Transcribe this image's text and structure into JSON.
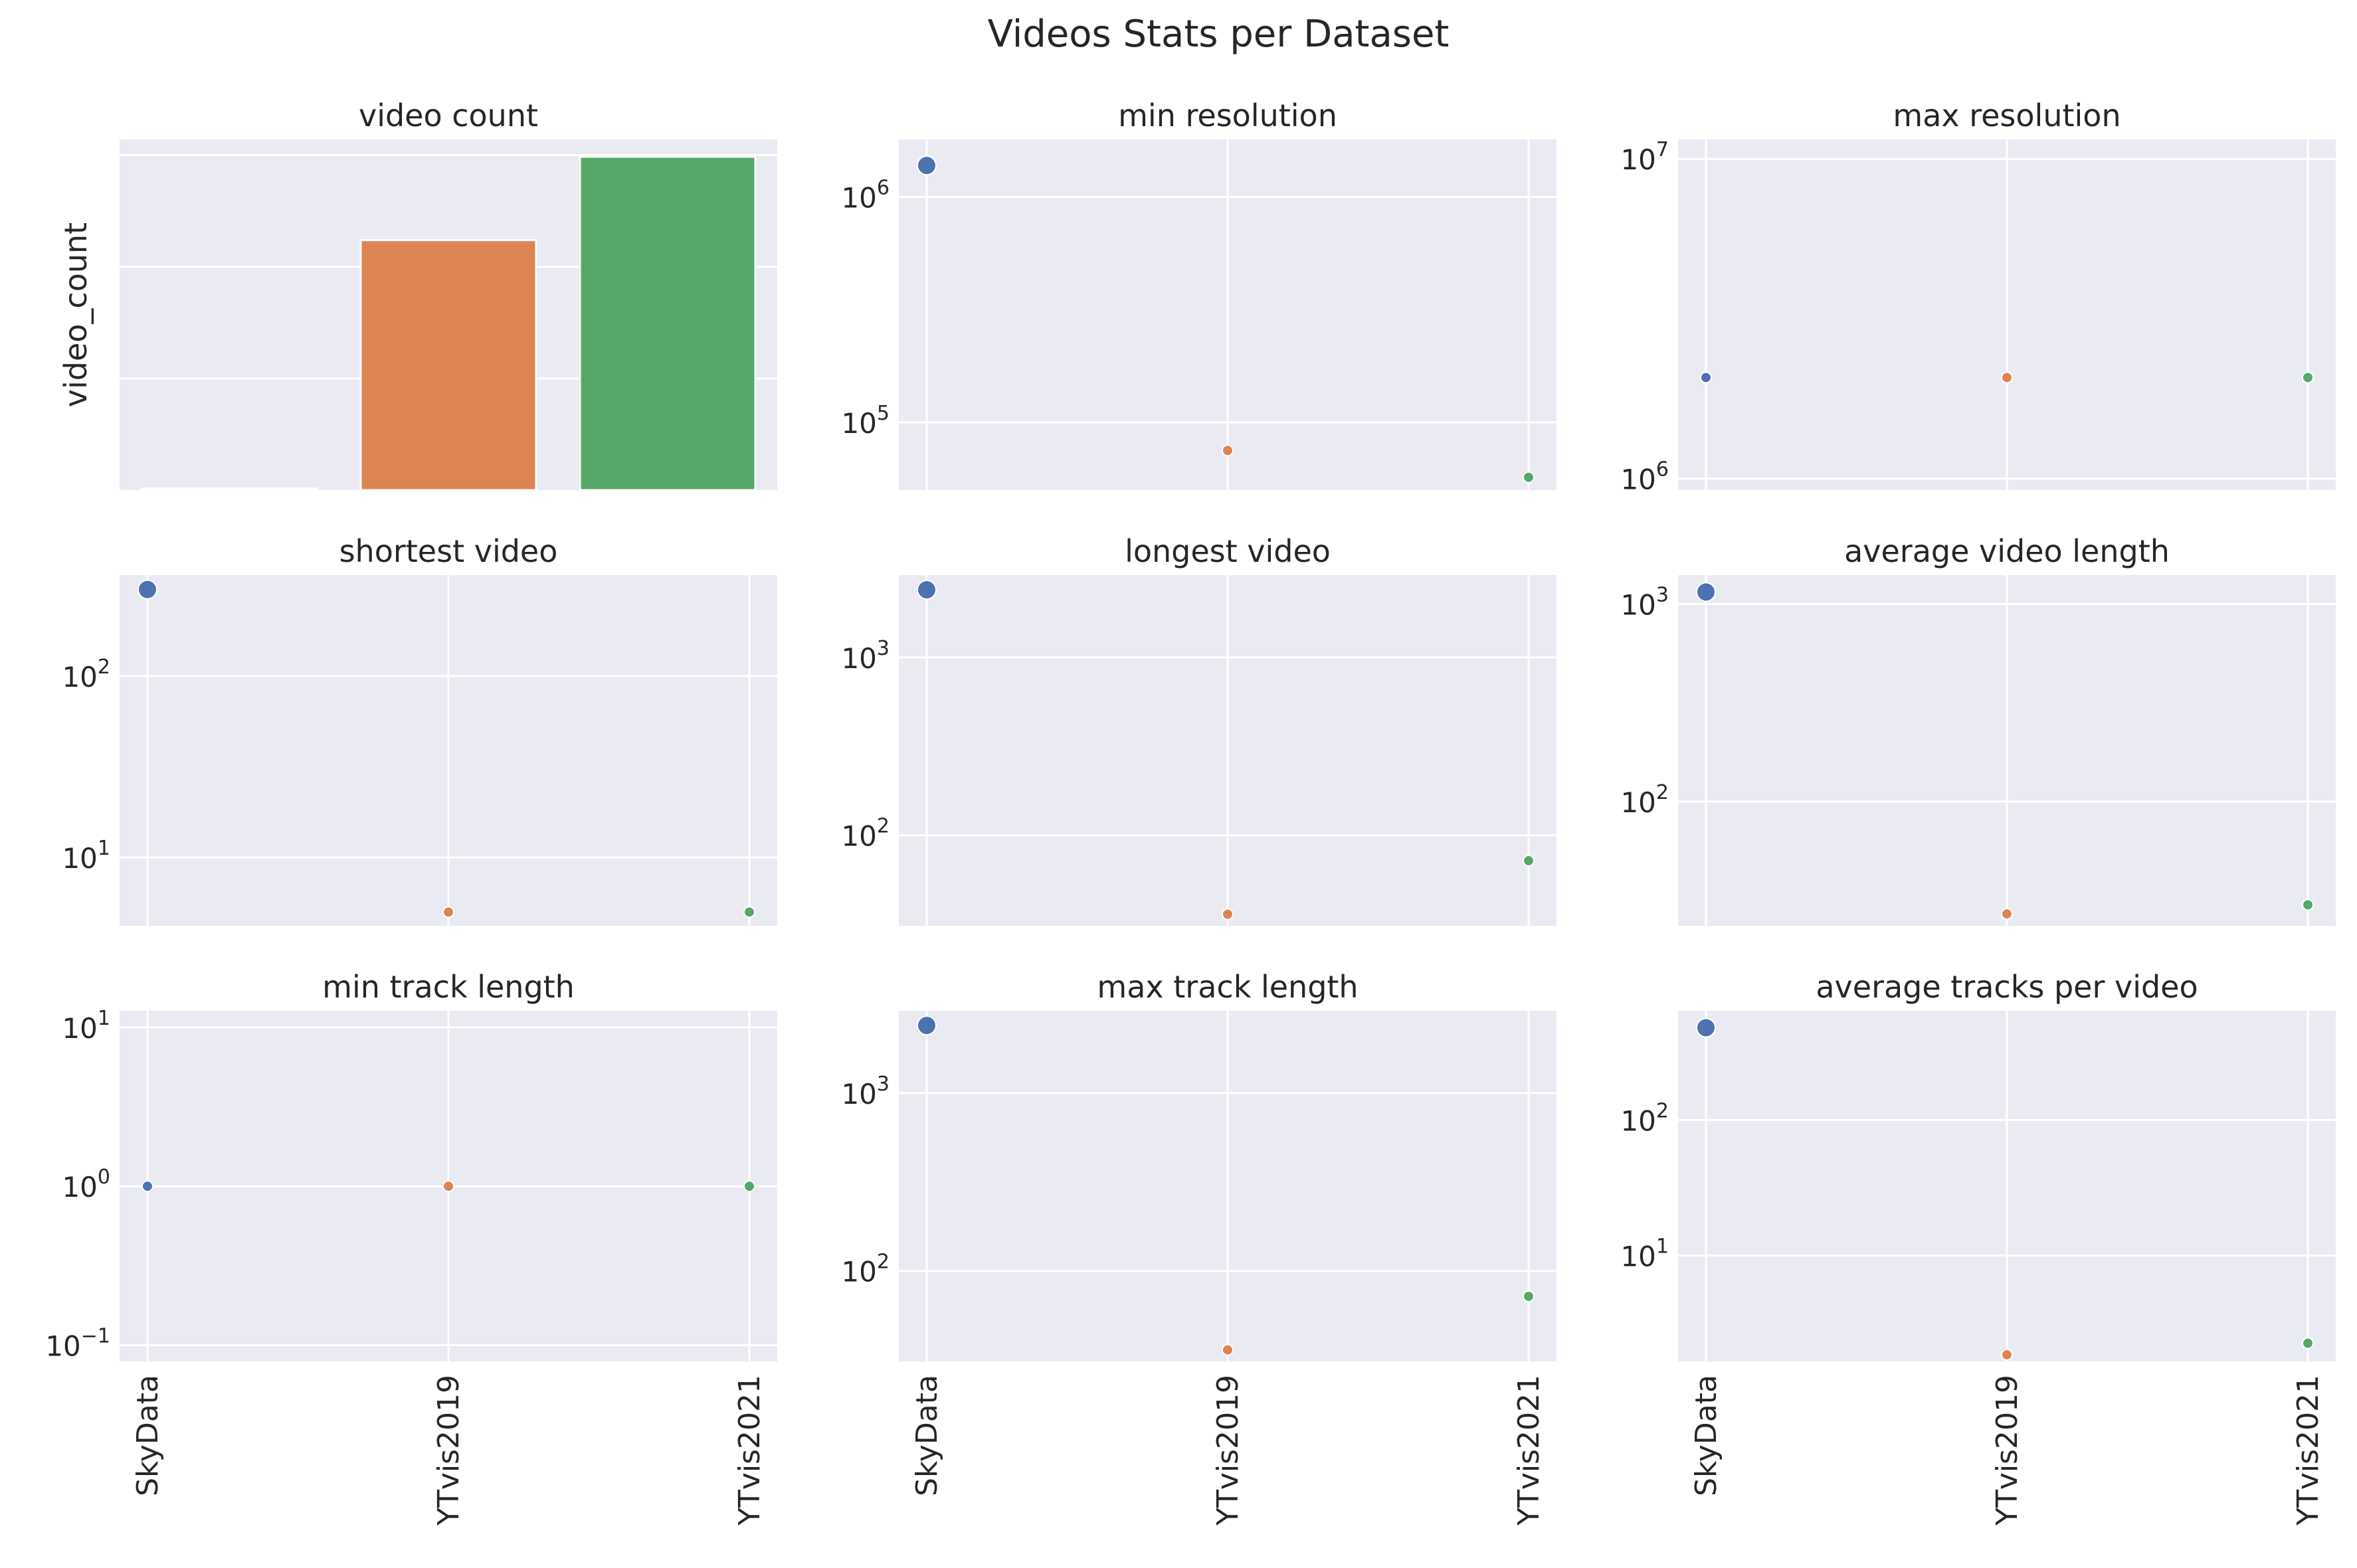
{
  "page": {
    "title": "Videos Stats per Dataset"
  },
  "palette": {
    "SkyData": "#4c72b0",
    "YTvis2019": "#dd8452",
    "YTvis2021": "#55a868",
    "panel_bg": "#eaeaf2",
    "grid": "#ffffff"
  },
  "chart_data": [
    {
      "type": "bar",
      "title": "video count",
      "ylabel": "video_count",
      "xlabel": "",
      "categories": [
        "SkyData",
        "YTvis2019",
        "YTvis2021"
      ],
      "values": [
        15,
        2238,
        2985
      ],
      "ylim": [
        0,
        3140
      ],
      "yscale": "linear",
      "y_tick_values": [
        1000,
        2000,
        3000
      ],
      "show_y_tick_labels": false,
      "x_tick_labels": [
        "SkyData",
        "YTvis2019",
        "YTvis2021"
      ],
      "show_x_tick_labels": false,
      "grid": true
    },
    {
      "type": "scatter",
      "title": "min resolution",
      "categories": [
        "SkyData",
        "YTvis2019",
        "YTvis2021"
      ],
      "values": [
        1380000,
        75000,
        57000
      ],
      "ylim": [
        50000,
        1800000
      ],
      "yscale": "log",
      "y_ticks": [
        {
          "value": 100000,
          "base": "10",
          "exp": "5"
        },
        {
          "value": 1000000,
          "base": "10",
          "exp": "6"
        }
      ],
      "marker_sizes": [
        "large",
        "small",
        "small"
      ],
      "show_x_tick_labels": false,
      "grid": true
    },
    {
      "type": "scatter",
      "title": "max resolution",
      "categories": [
        "SkyData",
        "YTvis2019",
        "YTvis2021"
      ],
      "values": [
        2070000,
        2070000,
        2070000
      ],
      "ylim": [
        920000,
        11500000
      ],
      "yscale": "log",
      "y_ticks": [
        {
          "value": 1000000,
          "base": "10",
          "exp": "6"
        },
        {
          "value": 10000000,
          "base": "10",
          "exp": "7"
        }
      ],
      "marker_sizes": [
        "small",
        "small",
        "small"
      ],
      "show_x_tick_labels": false,
      "grid": true
    },
    {
      "type": "scatter",
      "title": "shortest video",
      "categories": [
        "SkyData",
        "YTvis2019",
        "YTvis2021"
      ],
      "values": [
        300,
        5,
        5
      ],
      "ylim": [
        4.2,
        360
      ],
      "yscale": "log",
      "y_ticks": [
        {
          "value": 10,
          "base": "10",
          "exp": "1"
        },
        {
          "value": 100,
          "base": "10",
          "exp": "2"
        }
      ],
      "marker_sizes": [
        "large",
        "small",
        "small"
      ],
      "show_x_tick_labels": false,
      "grid": true
    },
    {
      "type": "scatter",
      "title": "longest video",
      "categories": [
        "SkyData",
        "YTvis2019",
        "YTvis2021"
      ],
      "values": [
        2400,
        36,
        72
      ],
      "ylim": [
        31,
        2900
      ],
      "yscale": "log",
      "y_ticks": [
        {
          "value": 100,
          "base": "10",
          "exp": "2"
        },
        {
          "value": 1000,
          "base": "10",
          "exp": "3"
        }
      ],
      "marker_sizes": [
        "large",
        "small",
        "small"
      ],
      "show_x_tick_labels": false,
      "grid": true
    },
    {
      "type": "scatter",
      "title": "average video length",
      "categories": [
        "SkyData",
        "YTvis2019",
        "YTvis2021"
      ],
      "values": [
        1150,
        27,
        30
      ],
      "ylim": [
        23.5,
        1400
      ],
      "yscale": "log",
      "y_ticks": [
        {
          "value": 100,
          "base": "10",
          "exp": "2"
        },
        {
          "value": 1000,
          "base": "10",
          "exp": "3"
        }
      ],
      "marker_sizes": [
        "large",
        "small",
        "small"
      ],
      "show_x_tick_labels": false,
      "grid": true
    },
    {
      "type": "scatter",
      "title": "min track length",
      "categories": [
        "SkyData",
        "YTvis2019",
        "YTvis2021"
      ],
      "values": [
        1,
        1,
        1
      ],
      "ylim": [
        0.079,
        12.7
      ],
      "yscale": "log",
      "y_ticks": [
        {
          "value": 0.1,
          "base": "10",
          "exp": "−1"
        },
        {
          "value": 1,
          "base": "10",
          "exp": "0"
        },
        {
          "value": 10,
          "base": "10",
          "exp": "1"
        }
      ],
      "marker_sizes": [
        "small",
        "small",
        "small"
      ],
      "x_tick_labels": [
        "SkyData",
        "YTvis2019",
        "YTvis2021"
      ],
      "show_x_tick_labels": true,
      "grid": true
    },
    {
      "type": "scatter",
      "title": "max track length",
      "categories": [
        "SkyData",
        "YTvis2019",
        "YTvis2021"
      ],
      "values": [
        2400,
        36,
        72
      ],
      "ylim": [
        31,
        2900
      ],
      "yscale": "log",
      "y_ticks": [
        {
          "value": 100,
          "base": "10",
          "exp": "2"
        },
        {
          "value": 1000,
          "base": "10",
          "exp": "3"
        }
      ],
      "marker_sizes": [
        "large",
        "small",
        "small"
      ],
      "x_tick_labels": [
        "SkyData",
        "YTvis2019",
        "YTvis2021"
      ],
      "show_x_tick_labels": true,
      "grid": true
    },
    {
      "type": "scatter",
      "title": "average tracks per video",
      "categories": [
        "SkyData",
        "YTvis2019",
        "YTvis2021"
      ],
      "values": [
        480,
        1.85,
        2.25
      ],
      "ylim": [
        1.65,
        640
      ],
      "yscale": "log",
      "y_ticks": [
        {
          "value": 10,
          "base": "10",
          "exp": "1"
        },
        {
          "value": 100,
          "base": "10",
          "exp": "2"
        }
      ],
      "marker_sizes": [
        "large",
        "small",
        "small"
      ],
      "x_tick_labels": [
        "SkyData",
        "YTvis2019",
        "YTvis2021"
      ],
      "show_x_tick_labels": true,
      "grid": true
    }
  ]
}
